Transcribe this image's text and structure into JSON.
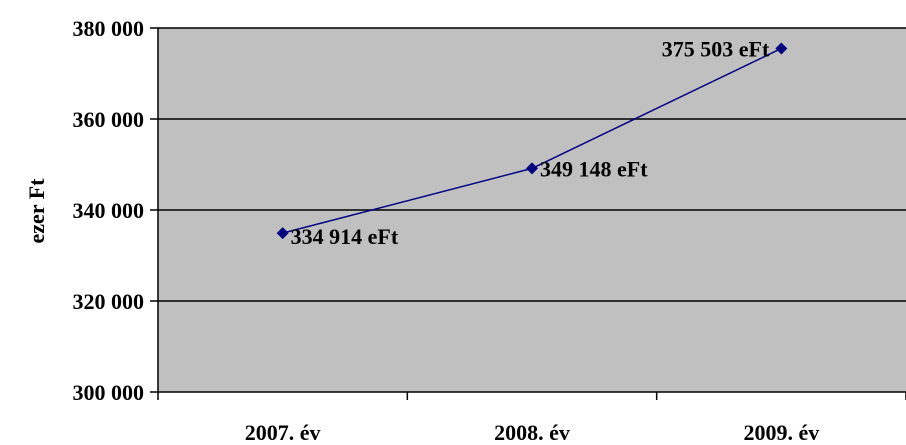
{
  "chart_data": {
    "type": "line",
    "categories": [
      "2007. év",
      "2008. év",
      "2009. év"
    ],
    "series": [
      {
        "values": [
          334914,
          349148,
          375503
        ],
        "data_labels": [
          "334 914 eFt",
          "349 148 eFt",
          "375 503 eFt"
        ],
        "color": "#000080",
        "marker": "diamond"
      }
    ],
    "ylabel": "ezer Ft",
    "xlabel": "",
    "ylim": [
      300000,
      380000
    ],
    "yticks": [
      300000,
      320000,
      340000,
      360000,
      380000
    ],
    "ytick_labels": [
      "300 000",
      "320 000",
      "340 000",
      "360 000",
      "380 000"
    ],
    "grid": true,
    "plot_background": "#c0c0c0",
    "legend": "none"
  }
}
